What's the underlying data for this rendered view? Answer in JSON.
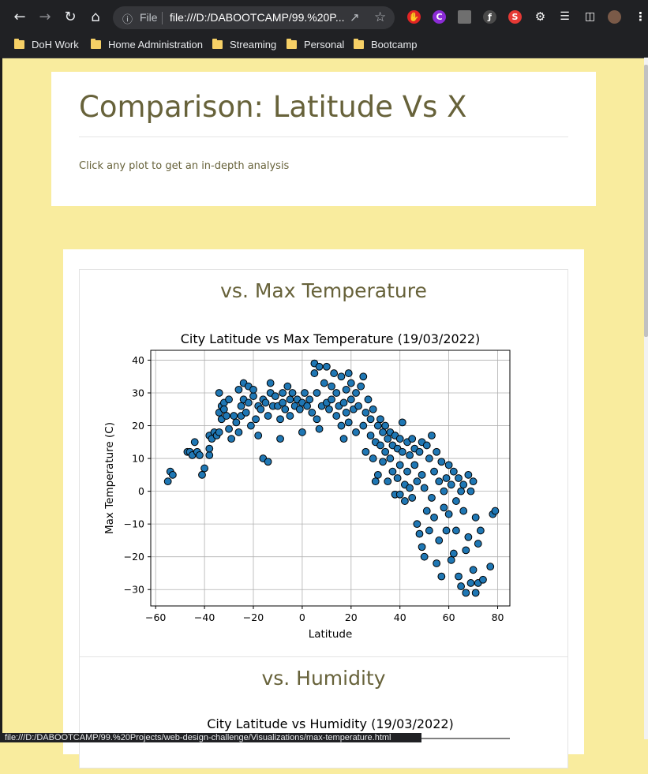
{
  "browser": {
    "omnibox": {
      "scheme_label": "File",
      "url": "file:///D:/DABOOTCAMP/99.%20P..."
    },
    "bookmarks": [
      "DoH Work",
      "Home Administration",
      "Streaming",
      "Personal",
      "Bootcamp"
    ],
    "status_url": "file:///D:/DABOOTCAMP/99.%20Projects/web-design-challenge/Visualizations/max-temperature.html"
  },
  "page": {
    "title": "Comparison: Latitude Vs X",
    "subtitle": "Click any plot to get an in-depth analysis"
  },
  "panels": [
    {
      "heading": "vs. Max Temperature"
    },
    {
      "heading": "vs. Humidity"
    }
  ],
  "chart_data": [
    {
      "type": "scatter",
      "title": "City Latitude vs Max Temperature (19/03/2022)",
      "xlabel": "Latitude",
      "ylabel": "Max Temperature (C)",
      "xlim": [
        -62,
        85
      ],
      "ylim": [
        -35,
        43
      ],
      "xticks": [
        -60,
        -40,
        -20,
        0,
        20,
        40,
        60,
        80
      ],
      "yticks": [
        -30,
        -20,
        -10,
        0,
        10,
        20,
        30,
        40
      ],
      "grid": true,
      "marker_color": "#1f77b4",
      "edge_color": "#000000",
      "points": [
        [
          -55,
          3
        ],
        [
          -54,
          6
        ],
        [
          -53,
          5
        ],
        [
          -47,
          12
        ],
        [
          -46,
          12
        ],
        [
          -45,
          11
        ],
        [
          -44,
          15
        ],
        [
          -43,
          12
        ],
        [
          -42,
          11
        ],
        [
          -41,
          5
        ],
        [
          -40,
          7
        ],
        [
          -38,
          11
        ],
        [
          -38,
          13
        ],
        [
          -38,
          17
        ],
        [
          -37,
          16
        ],
        [
          -36,
          18
        ],
        [
          -35,
          17
        ],
        [
          -34,
          18
        ],
        [
          -34,
          24
        ],
        [
          -34,
          30
        ],
        [
          -33,
          26
        ],
        [
          -33,
          22
        ],
        [
          -32,
          27
        ],
        [
          -32,
          25
        ],
        [
          -31,
          23
        ],
        [
          -30,
          19
        ],
        [
          -30,
          28
        ],
        [
          -29,
          16
        ],
        [
          -28,
          23
        ],
        [
          -27,
          21
        ],
        [
          -26,
          18
        ],
        [
          -26,
          31
        ],
        [
          -25,
          23
        ],
        [
          -25,
          26
        ],
        [
          -24,
          28
        ],
        [
          -24,
          33
        ],
        [
          -23,
          24
        ],
        [
          -22,
          32
        ],
        [
          -22,
          27
        ],
        [
          -21,
          20
        ],
        [
          -20,
          29
        ],
        [
          -20,
          31
        ],
        [
          -19,
          22
        ],
        [
          -18,
          17
        ],
        [
          -18,
          26
        ],
        [
          -17,
          25
        ],
        [
          -16,
          10
        ],
        [
          -16,
          28
        ],
        [
          -15,
          27
        ],
        [
          -14,
          9
        ],
        [
          -14,
          23
        ],
        [
          -13,
          30
        ],
        [
          -13,
          33
        ],
        [
          -12,
          26
        ],
        [
          -11,
          29
        ],
        [
          -10,
          26
        ],
        [
          -9,
          16
        ],
        [
          -9,
          22
        ],
        [
          -8,
          30
        ],
        [
          -8,
          27
        ],
        [
          -7,
          25
        ],
        [
          -6,
          32
        ],
        [
          -5,
          28
        ],
        [
          -5,
          23
        ],
        [
          -4,
          30
        ],
        [
          -3,
          26
        ],
        [
          -2,
          28
        ],
        [
          -1,
          25
        ],
        [
          0,
          18
        ],
        [
          0,
          27
        ],
        [
          1,
          30
        ],
        [
          2,
          26
        ],
        [
          3,
          28
        ],
        [
          4,
          24
        ],
        [
          5,
          36
        ],
        [
          5,
          39
        ],
        [
          6,
          30
        ],
        [
          6,
          22
        ],
        [
          7,
          38
        ],
        [
          7,
          19
        ],
        [
          8,
          26
        ],
        [
          9,
          33
        ],
        [
          10,
          27
        ],
        [
          10,
          38
        ],
        [
          11,
          25
        ],
        [
          12,
          32
        ],
        [
          12,
          28
        ],
        [
          13,
          36
        ],
        [
          14,
          30
        ],
        [
          14,
          23
        ],
        [
          15,
          26
        ],
        [
          16,
          35
        ],
        [
          16,
          20
        ],
        [
          17,
          27
        ],
        [
          17,
          16
        ],
        [
          18,
          31
        ],
        [
          18,
          24
        ],
        [
          19,
          36
        ],
        [
          19,
          21
        ],
        [
          20,
          28
        ],
        [
          20,
          33
        ],
        [
          21,
          25
        ],
        [
          22,
          30
        ],
        [
          22,
          18
        ],
        [
          23,
          26
        ],
        [
          24,
          32
        ],
        [
          25,
          20
        ],
        [
          25,
          35
        ],
        [
          26,
          24
        ],
        [
          26,
          12
        ],
        [
          27,
          28
        ],
        [
          28,
          17
        ],
        [
          28,
          22
        ],
        [
          29,
          25
        ],
        [
          29,
          10
        ],
        [
          30,
          15
        ],
        [
          30,
          3
        ],
        [
          31,
          20
        ],
        [
          31,
          5
        ],
        [
          32,
          14
        ],
        [
          32,
          22
        ],
        [
          33,
          18
        ],
        [
          33,
          9
        ],
        [
          34,
          12
        ],
        [
          34,
          20
        ],
        [
          35,
          16
        ],
        [
          35,
          3
        ],
        [
          36,
          18
        ],
        [
          36,
          10
        ],
        [
          37,
          14
        ],
        [
          37,
          6
        ],
        [
          38,
          17
        ],
        [
          38,
          -1
        ],
        [
          39,
          13
        ],
        [
          39,
          4
        ],
        [
          40,
          16
        ],
        [
          40,
          8
        ],
        [
          40,
          -1
        ],
        [
          41,
          21
        ],
        [
          41,
          12
        ],
        [
          42,
          2
        ],
        [
          42,
          -3
        ],
        [
          43,
          15
        ],
        [
          43,
          6
        ],
        [
          44,
          11
        ],
        [
          44,
          1
        ],
        [
          45,
          16
        ],
        [
          45,
          -2
        ],
        [
          46,
          8
        ],
        [
          46,
          13
        ],
        [
          47,
          3
        ],
        [
          47,
          -10
        ],
        [
          48,
          12
        ],
        [
          48,
          -13
        ],
        [
          49,
          15
        ],
        [
          49,
          -17
        ],
        [
          49,
          5
        ],
        [
          50,
          1
        ],
        [
          50,
          -20
        ],
        [
          51,
          14
        ],
        [
          51,
          -6
        ],
        [
          52,
          10
        ],
        [
          52,
          -12
        ],
        [
          53,
          17
        ],
        [
          53,
          -2
        ],
        [
          54,
          6
        ],
        [
          54,
          -8
        ],
        [
          55,
          12
        ],
        [
          55,
          -22
        ],
        [
          56,
          3
        ],
        [
          56,
          -15
        ],
        [
          57,
          9
        ],
        [
          57,
          -26
        ],
        [
          58,
          0
        ],
        [
          58,
          -5
        ],
        [
          59,
          4
        ],
        [
          59,
          -12
        ],
        [
          60,
          8
        ],
        [
          60,
          -7
        ],
        [
          61,
          2
        ],
        [
          61,
          -21
        ],
        [
          62,
          6
        ],
        [
          62,
          -19
        ],
        [
          63,
          -3
        ],
        [
          63,
          -12
        ],
        [
          64,
          4
        ],
        [
          64,
          -26
        ],
        [
          65,
          0
        ],
        [
          65,
          -29
        ],
        [
          66,
          -6
        ],
        [
          66,
          2
        ],
        [
          67,
          -18
        ],
        [
          67,
          -31
        ],
        [
          68,
          5
        ],
        [
          68,
          -14
        ],
        [
          69,
          0
        ],
        [
          69,
          -28
        ],
        [
          70,
          3
        ],
        [
          70,
          -24
        ],
        [
          71,
          -8
        ],
        [
          71,
          -31
        ],
        [
          72,
          -16
        ],
        [
          72,
          -28
        ],
        [
          73,
          -12
        ],
        [
          74,
          -27
        ],
        [
          77,
          -23
        ],
        [
          78,
          -7
        ],
        [
          79,
          -6
        ]
      ]
    },
    {
      "type": "scatter",
      "title": "City Latitude vs Humidity (19/03/2022)"
    }
  ]
}
